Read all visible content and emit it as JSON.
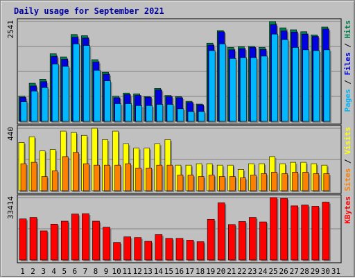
{
  "chart_data": {
    "type": "bar",
    "title": "Daily usage for September 2021",
    "categories": [
      "1",
      "2",
      "3",
      "4",
      "5",
      "6",
      "7",
      "8",
      "9",
      "10",
      "11",
      "12",
      "13",
      "14",
      "15",
      "16",
      "17",
      "18",
      "19",
      "20",
      "21",
      "22",
      "23",
      "24",
      "25",
      "26",
      "27",
      "28",
      "29",
      "30",
      "31"
    ],
    "weekend_days": [
      "4",
      "5",
      "11",
      "12",
      "18",
      "19",
      "25",
      "26"
    ],
    "colors": {
      "pages": "#00b8ff",
      "files": "#0000e0",
      "hits": "#00804f",
      "visits": "#ffff00",
      "sites": "#ff8000",
      "kbytes": "#ff0000",
      "weekday_label": "#000000",
      "weekend_label": "#007050"
    },
    "panels": [
      {
        "ylabel_max": "2541",
        "ylim": [
          0,
          2541
        ],
        "grid": true,
        "legend": [
          {
            "text": "Pages",
            "color": "#00b8ff"
          },
          {
            "text": " / ",
            "color": "#000000"
          },
          {
            "text": "Files",
            "color": "#0000e0"
          },
          {
            "text": " / ",
            "color": "#000000"
          },
          {
            "text": "Hits",
            "color": "#00804f"
          }
        ],
        "series": [
          {
            "name": "Hits",
            "values": [
              640,
              970,
              1070,
              1720,
              1640,
              2210,
              2180,
              1570,
              1250,
              640,
              720,
              700,
              630,
              840,
              660,
              630,
              510,
              440,
              1990,
              2310,
              1880,
              1900,
              1910,
              1880,
              2541,
              2380,
              2330,
              2280,
              2200,
              2400,
              0
            ]
          },
          {
            "name": "Files",
            "values": [
              610,
              900,
              1010,
              1650,
              1580,
              2140,
              2120,
              1510,
              1200,
              600,
              680,
              660,
              610,
              800,
              630,
              600,
              480,
              420,
              1940,
              2280,
              1820,
              1850,
              1880,
              1830,
              2460,
              2300,
              2270,
              2220,
              2160,
              2350,
              0
            ]
          },
          {
            "name": "Pages",
            "values": [
              500,
              770,
              860,
              1460,
              1400,
              1970,
              1930,
              1300,
              1030,
              450,
              450,
              400,
              400,
              430,
              430,
              320,
              250,
              250,
              1800,
              1970,
              1600,
              1620,
              1620,
              1660,
              2220,
              2080,
              1880,
              1820,
              1800,
              1820,
              0
            ]
          }
        ]
      },
      {
        "ylabel_max": "440",
        "ylim": [
          0,
          440
        ],
        "grid": true,
        "legend": [
          {
            "text": "Sites",
            "color": "#ff8000"
          },
          {
            "text": " / ",
            "color": "#000000"
          },
          {
            "text": "Visits",
            "color": "#ffff00"
          }
        ],
        "series": [
          {
            "name": "Visits",
            "values": [
              340,
              380,
              280,
              290,
              420,
              410,
              390,
              440,
              360,
              420,
              330,
              300,
              300,
              330,
              360,
              180,
              180,
              190,
              190,
              180,
              180,
              150,
              190,
              190,
              240,
              190,
              200,
              200,
              190,
              180,
              0
            ]
          },
          {
            "name": "Sites",
            "values": [
              190,
              200,
              100,
              140,
              240,
              270,
              190,
              180,
              180,
              180,
              190,
              160,
              160,
              180,
              180,
              110,
              110,
              100,
              110,
              100,
              100,
              90,
              110,
              120,
              130,
              120,
              130,
              130,
              120,
              120,
              0
            ]
          }
        ]
      },
      {
        "ylabel_max": "33414",
        "ylim": [
          0,
          33414
        ],
        "grid": true,
        "legend": [
          {
            "text": "KBytes",
            "color": "#ff0000"
          }
        ],
        "series": [
          {
            "name": "KBytes",
            "values": [
              22000,
              22800,
              15600,
              19200,
              20800,
              24600,
              24800,
              20800,
              17600,
              9400,
              12400,
              12000,
              10000,
              13600,
              11600,
              11600,
              10600,
              9800,
              21800,
              30600,
              19000,
              20600,
              22800,
              20400,
              33414,
              33000,
              29000,
              29400,
              28800,
              31000,
              0
            ]
          }
        ]
      }
    ]
  }
}
